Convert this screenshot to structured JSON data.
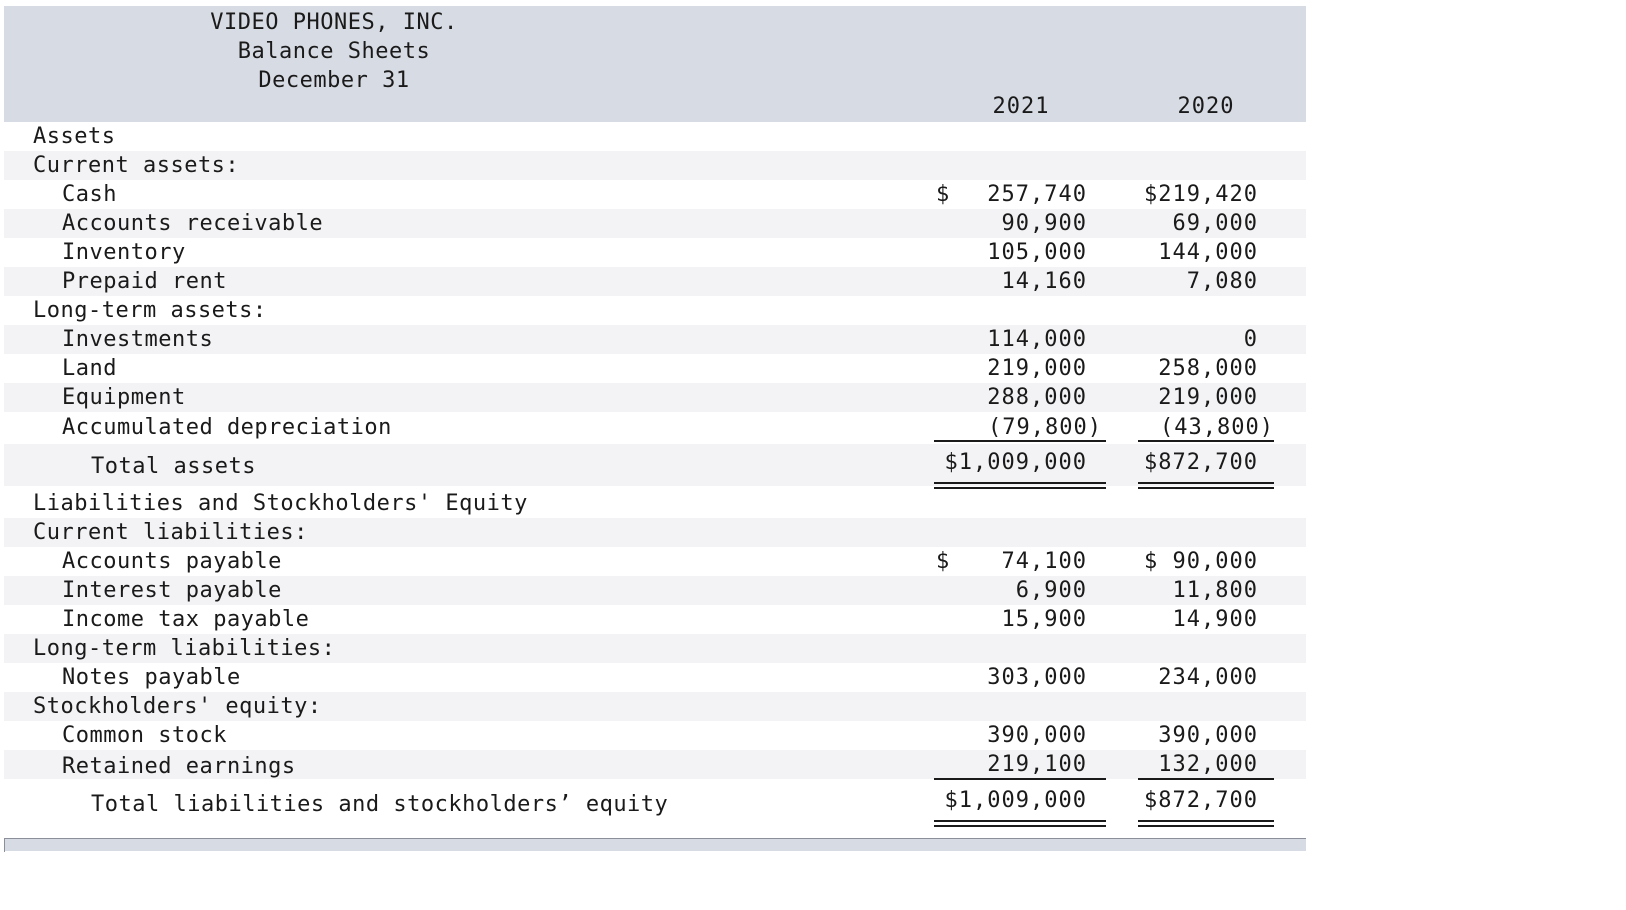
{
  "header": {
    "company": "VIDEO PHONES, INC.",
    "statement": "Balance Sheets",
    "date": "December 31",
    "col_2021": "2021",
    "col_2020": "2020"
  },
  "rows": [
    {
      "label": "Assets",
      "y2021": "",
      "y2020": ""
    },
    {
      "label": "Current assets:",
      "y2021": "",
      "y2020": ""
    },
    {
      "label": "Cash",
      "dollar": "$",
      "y2021": "257,740",
      "y2020": "$219,420"
    },
    {
      "label": "Accounts receivable",
      "y2021": "90,900",
      "y2020": "69,000"
    },
    {
      "label": "Inventory",
      "y2021": "105,000",
      "y2020": "144,000"
    },
    {
      "label": "Prepaid rent",
      "y2021": "14,160",
      "y2020": "7,080"
    },
    {
      "label": "Long-term assets:",
      "y2021": "",
      "y2020": ""
    },
    {
      "label": "Investments",
      "y2021": "114,000",
      "y2020": "0"
    },
    {
      "label": "Land",
      "y2021": "219,000",
      "y2020": "258,000"
    },
    {
      "label": "Equipment",
      "y2021": "288,000",
      "y2020": "219,000"
    },
    {
      "label": "Accumulated depreciation",
      "y2021": "(79,800)",
      "y2020": "(43,800)"
    },
    {
      "label": "Total assets",
      "y2021": "$1,009,000",
      "y2020": "$872,700"
    },
    {
      "label": "Liabilities and Stockholders' Equity",
      "y2021": "",
      "y2020": ""
    },
    {
      "label": "Current liabilities:",
      "y2021": "",
      "y2020": ""
    },
    {
      "label": "Accounts payable",
      "dollar": "$",
      "y2021": "74,100",
      "y2020": "$ 90,000"
    },
    {
      "label": "Interest payable",
      "y2021": "6,900",
      "y2020": "11,800"
    },
    {
      "label": "Income tax payable",
      "y2021": "15,900",
      "y2020": "14,900"
    },
    {
      "label": "Long-term liabilities:",
      "y2021": "",
      "y2020": ""
    },
    {
      "label": "Notes payable",
      "y2021": "303,000",
      "y2020": "234,000"
    },
    {
      "label": "Stockholders' equity:",
      "y2021": "",
      "y2020": ""
    },
    {
      "label": "Common stock",
      "y2021": "390,000",
      "y2020": "390,000"
    },
    {
      "label": "Retained earnings",
      "y2021": "219,100",
      "y2020": "132,000"
    },
    {
      "label": "Total liabilities and stockholders’ equity",
      "y2021": "$1,009,000",
      "y2020": "$872,700"
    }
  ]
}
